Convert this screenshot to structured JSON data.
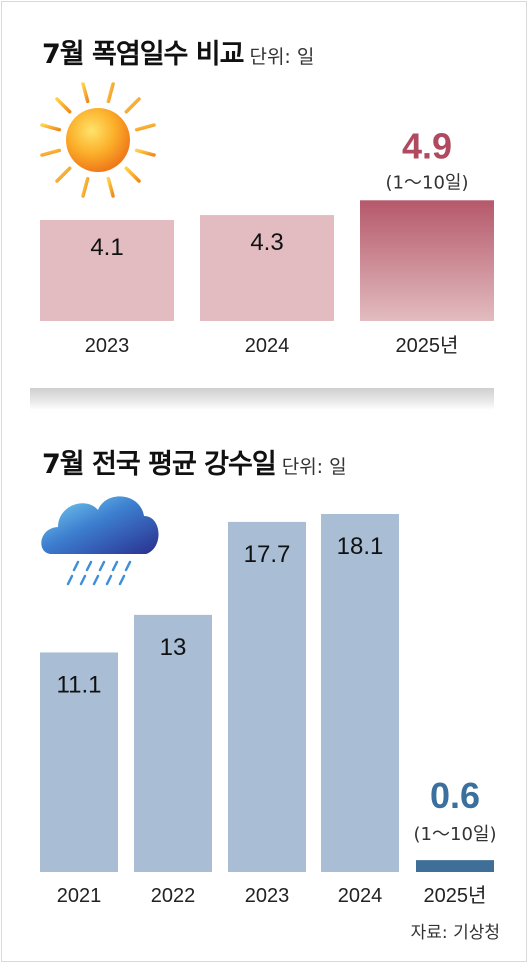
{
  "colors": {
    "heat_bar": "#e2bcc0",
    "heat_highlight_top": "#b5586a",
    "heat_highlight_text": "#b04a60",
    "rain_bar": "#a9bdd5",
    "rain_highlight": "#3f6e98",
    "rain_highlight_text": "#3a6f9e"
  },
  "icons": [
    "sun-icon",
    "rain-cloud-icon"
  ],
  "chart_data": [
    {
      "type": "bar",
      "title": "7월 폭염일수 비교",
      "unit": "단위: 일",
      "categories": [
        "2023",
        "2024",
        "2025년"
      ],
      "values": [
        4.1,
        4.3,
        4.9
      ],
      "value_labels": [
        "4.1",
        "4.3",
        "4.9"
      ],
      "highlight_index": 2,
      "highlight_note": "(1～10일)"
    },
    {
      "type": "bar",
      "title": "7월 전국 평균 강수일",
      "unit": "단위: 일",
      "categories": [
        "2021",
        "2022",
        "2023",
        "2024",
        "2025년"
      ],
      "values": [
        11.1,
        13,
        17.7,
        18.1,
        0.6
      ],
      "value_labels": [
        "11.1",
        "13",
        "17.7",
        "18.1",
        "0.6"
      ],
      "highlight_index": 4,
      "highlight_note": "(1～10일)"
    }
  ],
  "source": "자료: 기상청"
}
